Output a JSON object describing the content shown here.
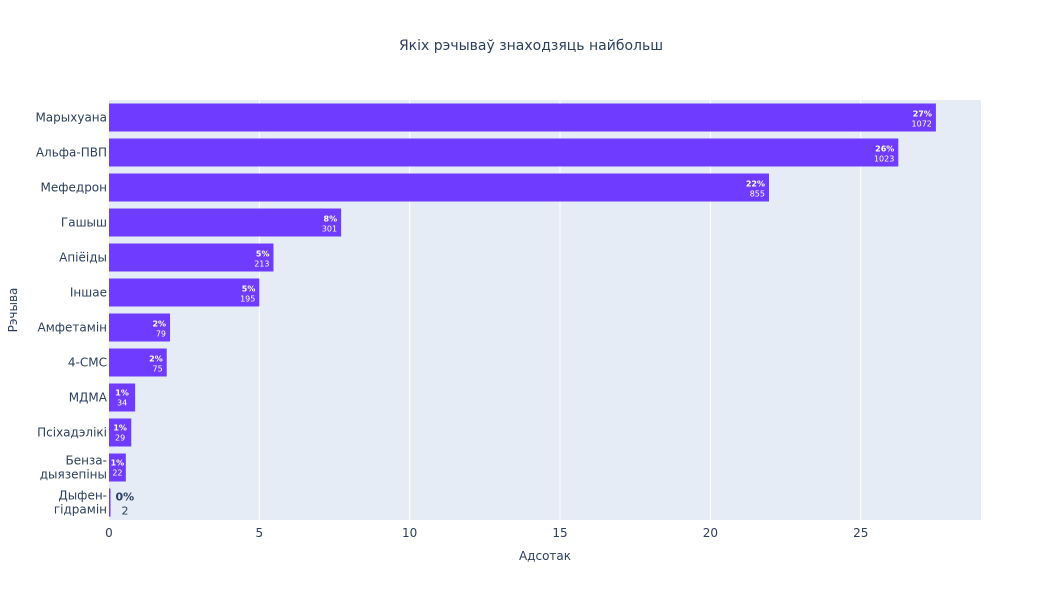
{
  "chart_data": {
    "type": "bar",
    "orientation": "horizontal",
    "title": "Якіх рэчываў знаходзяць найбольш",
    "xlabel": "Адсотак",
    "ylabel": "Рэчыва",
    "xlim": [
      0,
      29
    ],
    "xticks": [
      0,
      5,
      10,
      15,
      20,
      25
    ],
    "grid": true,
    "bar_color": "#6e3bff",
    "plot_bg": "#e5ecf6",
    "categories": [
      [
        "Марыхуана"
      ],
      [
        "Альфа-ПВП"
      ],
      [
        "Мефедрон"
      ],
      [
        "Гашыш"
      ],
      [
        "Апіёіды"
      ],
      [
        "Іншае"
      ],
      [
        "Амфетамін"
      ],
      [
        "4-CMC"
      ],
      [
        "МДМА"
      ],
      [
        "Псіхадэлікі"
      ],
      [
        "Бенза-",
        "дыязепіны"
      ],
      [
        "Дыфен-",
        "гідрамін"
      ]
    ],
    "values": [
      27.5,
      26.25,
      21.95,
      7.72,
      5.47,
      5.0,
      2.03,
      1.92,
      0.87,
      0.74,
      0.56,
      0.05
    ],
    "pct_labels": [
      "27%",
      "26%",
      "22%",
      "8%",
      "5%",
      "5%",
      "2%",
      "2%",
      "1%",
      "1%",
      "1%",
      "0%"
    ],
    "count_labels": [
      "1072",
      "1023",
      "855",
      "301",
      "213",
      "195",
      "79",
      "75",
      "34",
      "29",
      "22",
      "2"
    ]
  }
}
